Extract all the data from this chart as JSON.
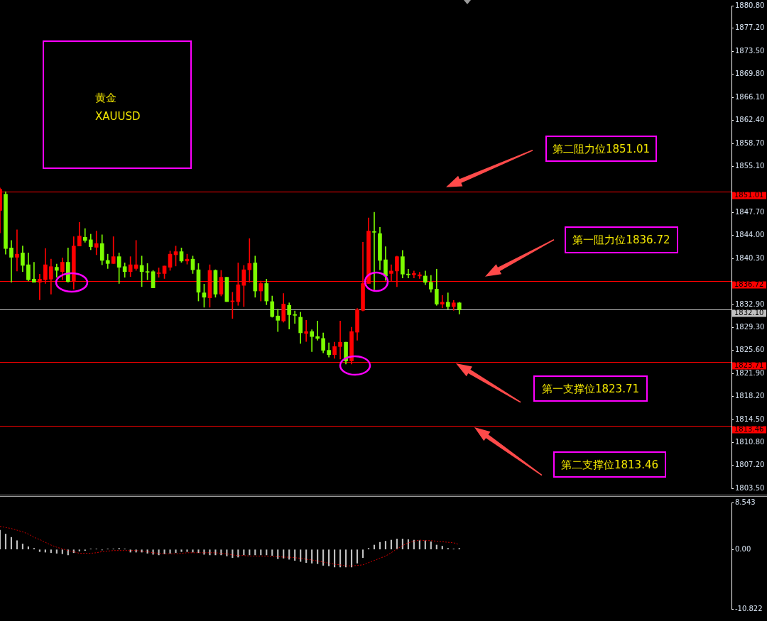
{
  "chart_data": [
    {
      "type": "candlestick",
      "categories": [
        null,
        null,
        null,
        null,
        null,
        null,
        null,
        null,
        null,
        null,
        null,
        null,
        null,
        null,
        null,
        null,
        null,
        null,
        null,
        null,
        null,
        null,
        null,
        null,
        null,
        null,
        null,
        null,
        null,
        null,
        null,
        null,
        null,
        null,
        null,
        null,
        null,
        null,
        null,
        null,
        null,
        null,
        null,
        null,
        null,
        null,
        null,
        null,
        null,
        null,
        null,
        null,
        null,
        null,
        null,
        null,
        null,
        null,
        null,
        null,
        null,
        null,
        null,
        null,
        null,
        null,
        null,
        null,
        null,
        null,
        null,
        null,
        null,
        null,
        null,
        null,
        null,
        null,
        null,
        null,
        null,
        null,
        null,
        null,
        null,
        null,
        null,
        null,
        null,
        null,
        null,
        null,
        null,
        null,
        null,
        null,
        null,
        null,
        null,
        null,
        null,
        null,
        null,
        null,
        null,
        null,
        null,
        null,
        null,
        null,
        null,
        null,
        null,
        null,
        null,
        null,
        null,
        null,
        null,
        null,
        null,
        null,
        null,
        null,
        null,
        null,
        null,
        null,
        null,
        null
      ],
      "ohlc": [
        [
          1848.0,
          1851.6,
          1844.4,
          1851.4
        ],
        [
          1850.6,
          1851.0,
          1841.0,
          1841.9
        ],
        [
          1842.0,
          1843.2,
          1836.5,
          1840.5
        ],
        [
          1840.5,
          1844.9,
          1838.3,
          1841.0
        ],
        [
          1841.2,
          1842.3,
          1838.2,
          1839.2
        ],
        [
          1839.3,
          1841.2,
          1836.7,
          1836.9
        ],
        [
          1837.0,
          1839.7,
          1836.5,
          1836.5
        ],
        [
          1836.5,
          1837.8,
          1833.7,
          1837.0
        ],
        [
          1836.9,
          1841.9,
          1836.3,
          1839.3
        ],
        [
          1837.0,
          1840.2,
          1834.6,
          1839.0
        ],
        [
          1838.9,
          1839.4,
          1837.3,
          1838.4
        ],
        [
          1838.2,
          1840.4,
          1836.9,
          1839.7
        ],
        [
          1839.7,
          1842.0,
          1836.5,
          1836.6
        ],
        [
          1836.6,
          1843.8,
          1835.4,
          1842.3
        ],
        [
          1842.3,
          1846.1,
          1842.3,
          1843.9
        ],
        [
          1843.7,
          1845.1,
          1842.9,
          1843.2
        ],
        [
          1843.3,
          1844.2,
          1841.7,
          1842.2
        ],
        [
          1842.1,
          1844.7,
          1840.9,
          1842.7
        ],
        [
          1842.7,
          1844.1,
          1839.3,
          1840.0
        ],
        [
          1840.0,
          1841.0,
          1838.7,
          1839.5
        ],
        [
          1839.5,
          1843.8,
          1839.5,
          1840.6
        ],
        [
          1840.6,
          1841.2,
          1836.3,
          1838.9
        ],
        [
          1839.0,
          1839.6,
          1837.3,
          1838.2
        ],
        [
          1838.2,
          1840.6,
          1837.4,
          1839.3
        ],
        [
          1838.7,
          1843.2,
          1838.4,
          1839.3
        ],
        [
          1839.2,
          1840.7,
          1835.8,
          1838.2
        ],
        [
          1838.2,
          1839.5,
          1836.9,
          1838.1
        ],
        [
          1838.2,
          1838.4,
          1835.6,
          1835.6
        ],
        [
          1837.9,
          1838.8,
          1837.3,
          1838.0
        ],
        [
          1837.9,
          1839.1,
          1837.1,
          1839.1
        ],
        [
          1838.9,
          1841.5,
          1838.4,
          1841.0
        ],
        [
          1840.9,
          1842.3,
          1839.1,
          1841.4
        ],
        [
          1841.4,
          1842.0,
          1839.7,
          1839.9
        ],
        [
          1839.9,
          1841.0,
          1839.4,
          1840.2
        ],
        [
          1840.2,
          1840.7,
          1837.9,
          1838.5
        ],
        [
          1838.5,
          1839.5,
          1833.5,
          1834.9
        ],
        [
          1834.8,
          1836.2,
          1832.5,
          1834.1
        ],
        [
          1834.0,
          1839.3,
          1832.5,
          1838.4
        ],
        [
          1838.4,
          1838.5,
          1834.1,
          1834.6
        ],
        [
          1834.6,
          1838.4,
          1834.3,
          1837.3
        ],
        [
          1837.3,
          1837.3,
          1833.4,
          1833.4
        ],
        [
          1833.4,
          1834.9,
          1830.7,
          1833.5
        ],
        [
          1833.4,
          1839.6,
          1832.8,
          1836.1
        ],
        [
          1836.0,
          1839.2,
          1832.6,
          1838.5
        ],
        [
          1838.5,
          1843.5,
          1836.5,
          1839.5
        ],
        [
          1839.6,
          1840.7,
          1834.1,
          1835.1
        ],
        [
          1835.1,
          1836.7,
          1833.5,
          1836.3
        ],
        [
          1836.3,
          1837.0,
          1832.9,
          1833.5
        ],
        [
          1833.4,
          1834.3,
          1830.9,
          1831.0
        ],
        [
          1831.1,
          1832.2,
          1828.6,
          1830.4
        ],
        [
          1830.3,
          1834.7,
          1830.1,
          1833.0
        ],
        [
          1832.8,
          1833.2,
          1829.0,
          1831.3
        ],
        [
          1831.3,
          1831.9,
          1829.9,
          1831.2
        ],
        [
          1830.9,
          1831.7,
          1826.7,
          1828.4
        ],
        [
          1828.3,
          1830.4,
          1827.0,
          1828.6
        ],
        [
          1828.6,
          1828.9,
          1825.4,
          1827.8
        ],
        [
          1827.8,
          1830.3,
          1827.2,
          1827.5
        ],
        [
          1827.5,
          1828.4,
          1825.2,
          1825.6
        ],
        [
          1825.6,
          1826.8,
          1824.5,
          1824.9
        ],
        [
          1824.9,
          1826.9,
          1824.3,
          1826.2
        ],
        [
          1826.2,
          1830.3,
          1824.2,
          1826.9
        ],
        [
          1826.9,
          1826.9,
          1823.4,
          1823.9
        ],
        [
          1823.9,
          1829.3,
          1823.4,
          1828.6
        ],
        [
          1828.5,
          1832.3,
          1827.2,
          1832.1
        ],
        [
          1832.0,
          1842.9,
          1831.9,
          1836.3
        ],
        [
          1836.3,
          1846.8,
          1836.3,
          1844.7
        ],
        [
          1844.6,
          1847.7,
          1835.3,
          1844.5
        ],
        [
          1844.3,
          1845.3,
          1838.5,
          1840.0
        ],
        [
          1840.1,
          1842.2,
          1836.8,
          1837.5
        ],
        [
          1837.9,
          1839.3,
          1836.7,
          1838.3
        ],
        [
          1838.3,
          1840.7,
          1835.8,
          1840.6
        ],
        [
          1840.6,
          1841.6,
          1837.2,
          1837.8
        ],
        [
          1837.8,
          1838.6,
          1837.2,
          1837.7
        ],
        [
          1837.7,
          1838.3,
          1837.2,
          1837.9
        ],
        [
          1837.5,
          1838.1,
          1837.1,
          1837.7
        ],
        [
          1837.5,
          1838.3,
          1836.1,
          1836.5
        ],
        [
          1836.5,
          1837.6,
          1834.9,
          1835.4
        ],
        [
          1835.4,
          1838.6,
          1832.8,
          1833.0
        ],
        [
          1833.0,
          1834.4,
          1832.4,
          1833.3
        ],
        [
          1833.3,
          1834.8,
          1832.2,
          1832.6
        ],
        [
          1832.6,
          1833.6,
          1832.0,
          1833.2
        ],
        [
          1833.2,
          1833.3,
          1831.4,
          1832.1
        ],
        null,
        null,
        null,
        null,
        null,
        null,
        null,
        null,
        null,
        null,
        null,
        null,
        null,
        null,
        null,
        null,
        null,
        null,
        null,
        null,
        null,
        null,
        null,
        null,
        null,
        null,
        null,
        null,
        null,
        null,
        null,
        null,
        null,
        null,
        null,
        null,
        null,
        null,
        null,
        null,
        null,
        null,
        null,
        null,
        null,
        null,
        null,
        null
      ],
      "colors": [
        "#ff0000",
        "#7cfc00",
        "#7cfc00",
        "#ff0000",
        "#7cfc00",
        "#7cfc00",
        "#7cfc00",
        "#ff0000",
        "#ff0000",
        "#ff0000",
        "#7cfc00",
        "#ff0000",
        "#7cfc00",
        "#ff0000",
        "#ff0000",
        "#7cfc00",
        "#7cfc00",
        "#ff0000",
        "#7cfc00",
        "#7cfc00",
        "#ff0000",
        "#7cfc00",
        "#7cfc00",
        "#ff0000",
        "#ff0000",
        "#7cfc00",
        "#7cfc00",
        "#7cfc00",
        "#ff0000",
        "#ff0000",
        "#ff0000",
        "#ff0000",
        "#7cfc00",
        "#ff0000",
        "#7cfc00",
        "#7cfc00",
        "#7cfc00",
        "#ff0000",
        "#7cfc00",
        "#ff0000",
        "#7cfc00",
        "#ff0000",
        "#ff0000",
        "#ff0000",
        "#ff0000",
        "#7cfc00",
        "#ff0000",
        "#7cfc00",
        "#7cfc00",
        "#7cfc00",
        "#ff0000",
        "#7cfc00",
        "#7cfc00",
        "#7cfc00",
        "#ff0000",
        "#7cfc00",
        "#7cfc00",
        "#7cfc00",
        "#7cfc00",
        "#ff0000",
        "#ff0000",
        "#7cfc00",
        "#ff0000",
        "#ff0000",
        "#ff0000",
        "#ff0000",
        "#7cfc00",
        "#7cfc00",
        "#7cfc00",
        "#ff0000",
        "#ff0000",
        "#7cfc00",
        "#7cfc00",
        "#ff0000",
        "#ff0000",
        "#7cfc00",
        "#7cfc00",
        "#7cfc00",
        "#ff0000",
        "#7cfc00",
        "#ff0000",
        "#7cfc00",
        null,
        null,
        null,
        null,
        null,
        null,
        null,
        null,
        null,
        null,
        null,
        null,
        null,
        null,
        null,
        null,
        null,
        null,
        null,
        null,
        null,
        null,
        null,
        null,
        null,
        null,
        null,
        null,
        null,
        null,
        null,
        null,
        null,
        null,
        null,
        null,
        null,
        null,
        null,
        null,
        null,
        null,
        null,
        null,
        null,
        null,
        null,
        null
      ],
      "ylim": [
        1803.5,
        1880.8
      ],
      "yticks": [
        {
          "value": 1803.5,
          "label": "1803.50"
        },
        {
          "value": 1807.2,
          "label": "1807.20"
        },
        {
          "value": 1810.8,
          "label": "1810.80"
        },
        {
          "value": 1814.5,
          "label": "1814.50"
        },
        {
          "value": 1818.2,
          "label": "1818.20"
        },
        {
          "value": 1821.9,
          "label": "1821.90"
        },
        {
          "value": 1825.6,
          "label": "1825.60"
        },
        {
          "value": 1829.3,
          "label": "1829.30"
        },
        {
          "value": 1832.9,
          "label": "1832.90"
        },
        {
          "value": 1840.3,
          "label": "1840.30"
        },
        {
          "value": 1844,
          "label": "1844.00"
        },
        {
          "value": 1847.7,
          "label": "1847.70"
        },
        {
          "value": 1855.1,
          "label": "1855.10"
        },
        {
          "value": 1858.7,
          "label": "1858.70"
        },
        {
          "value": 1862.4,
          "label": "1862.40"
        },
        {
          "value": 1866.1,
          "label": "1866.10"
        },
        {
          "value": 1869.8,
          "label": "1869.80"
        },
        {
          "value": 1873.5,
          "label": "1873.50"
        },
        {
          "value": 1877.2,
          "label": "1877.20"
        },
        {
          "value": 1880.8,
          "label": "1880.80"
        }
      ],
      "ref_lines": [
        {
          "axis": "y",
          "value": 1851.01,
          "label": "1851.01",
          "color": "#ff0000"
        },
        {
          "axis": "y",
          "value": 1836.72,
          "label": "1836.72",
          "color": "#ff0000"
        },
        {
          "axis": "y",
          "value": 1832.1,
          "label": "1832.10",
          "color": "#c0c0c0"
        },
        {
          "axis": "y",
          "value": 1823.71,
          "label": "1823.71",
          "color": "#ff0000"
        },
        {
          "axis": "y",
          "value": 1813.46,
          "label": "1813.46",
          "color": "#ff0000"
        }
      ],
      "annotations": [
        "黄金\nXAUUSD",
        "第二阻力位1851.01",
        "第一阻力位1836.72",
        {
          "text": "第一支撑位1823.71",
          "y": 1823.71
        },
        {
          "text": "第二支撑位1813.46",
          "y": 1813.46
        }
      ],
      "tick_labels": "y"
    },
    {
      "type": "bar",
      "categories": [
        null,
        null,
        null,
        null,
        null,
        null,
        null,
        null,
        null,
        null,
        null,
        null,
        null,
        null,
        null,
        null,
        null,
        null,
        null,
        null,
        null,
        null,
        null,
        null,
        null,
        null,
        null,
        null,
        null,
        null,
        null,
        null,
        null,
        null,
        null,
        null,
        null,
        null,
        null,
        null,
        null,
        null,
        null,
        null,
        null,
        null,
        null,
        null,
        null,
        null,
        null,
        null,
        null,
        null,
        null,
        null,
        null,
        null,
        null,
        null,
        null,
        null,
        null,
        null,
        null,
        null,
        null,
        null,
        null,
        null,
        null,
        null,
        null,
        null,
        null,
        null,
        null,
        null,
        null,
        null,
        null,
        null,
        null,
        null,
        null,
        null,
        null,
        null,
        null,
        null,
        null,
        null,
        null,
        null,
        null,
        null,
        null,
        null,
        null,
        null,
        null,
        null,
        null,
        null,
        null,
        null,
        null,
        null,
        null,
        null,
        null,
        null,
        null,
        null,
        null,
        null,
        null,
        null,
        null,
        null,
        null,
        null,
        null,
        null,
        null,
        null,
        null,
        null,
        null,
        null
      ],
      "series": [
        {
          "type": "bar",
          "color": "#c0c0c0",
          "values": [
            3.5,
            2.8,
            2.2,
            1.6,
            1.0,
            0.5,
            0.2,
            -0.4,
            -0.5,
            -0.6,
            -0.7,
            -0.8,
            -1.0,
            -0.6,
            -0.3,
            -0.2,
            0.1,
            0.1,
            -0.1,
            0.1,
            0.1,
            0.2,
            0.1,
            -0.5,
            -0.5,
            -0.5,
            -0.7,
            -0.9,
            -1.0,
            -0.8,
            -0.7,
            -0.6,
            -0.4,
            -0.4,
            -0.5,
            -0.6,
            -0.9,
            -1.0,
            -1.0,
            -1.0,
            -1.2,
            -1.5,
            -1.4,
            -1.0,
            -1.0,
            -1.0,
            -1.0,
            -1.0,
            -1.1,
            -1.7,
            -1.6,
            -1.8,
            -2.0,
            -2.2,
            -2.4,
            -2.5,
            -2.6,
            -2.9,
            -3.0,
            -3.2,
            -3.2,
            -3.2,
            -3.2,
            -2.5,
            -1.5,
            0.2,
            0.8,
            1.3,
            1.5,
            1.7,
            1.9,
            1.9,
            1.8,
            1.7,
            1.6,
            1.6,
            1.4,
            0.8,
            0.6,
            0.2,
            0.1,
            0.2,
            null,
            null,
            null,
            null,
            null,
            null,
            null,
            null,
            null,
            null,
            null,
            null,
            null,
            null,
            null,
            null,
            null,
            null,
            null,
            null,
            null,
            null,
            null,
            null,
            null,
            null,
            null,
            null,
            null,
            null,
            null,
            null,
            null,
            null,
            null,
            null,
            null,
            null,
            null,
            null,
            null,
            null,
            null,
            null,
            null,
            null,
            null,
            null
          ]
        },
        {
          "type": "line",
          "color": "#cc0000",
          "values": [
            4.2,
            4.0,
            3.8,
            3.5,
            3.2,
            2.8,
            2.2,
            1.8,
            1.3,
            0.8,
            0.4,
            0.1,
            -0.2,
            -0.4,
            -0.7,
            -0.7,
            -0.7,
            -0.6,
            -0.4,
            -0.3,
            -0.2,
            -0.2,
            -0.2,
            -0.2,
            -0.2,
            -0.3,
            -0.4,
            -0.6,
            -0.7,
            -0.8,
            -0.8,
            -0.8,
            -0.7,
            -0.6,
            -0.6,
            -0.6,
            -0.6,
            -0.6,
            -0.6,
            -0.7,
            -0.8,
            -1.0,
            -1.1,
            -1.1,
            -1.2,
            -1.2,
            -1.2,
            -1.2,
            -1.3,
            -1.3,
            -1.4,
            -1.4,
            -1.5,
            -1.6,
            -1.8,
            -1.9,
            -2.1,
            -2.3,
            -2.5,
            -2.7,
            -2.8,
            -3.0,
            -3.0,
            -2.9,
            -2.8,
            -2.4,
            -2.0,
            -1.6,
            -1.2,
            -0.6,
            0.1,
            0.7,
            1.2,
            1.5,
            1.7,
            1.6,
            1.6,
            1.5,
            1.4,
            1.3,
            1.2,
            0.9,
            null,
            null,
            null,
            null,
            null,
            null,
            null,
            null,
            null,
            null,
            null,
            null,
            null,
            null,
            null,
            null,
            null,
            null,
            null,
            null,
            null,
            null,
            null,
            null,
            null,
            null,
            null,
            null,
            null,
            null,
            null,
            null,
            null,
            null,
            null,
            null,
            null,
            null,
            null,
            null,
            null,
            null,
            null,
            null,
            null,
            null,
            null,
            null
          ]
        }
      ],
      "ylim": [
        -10.822,
        8.543
      ],
      "yticks": [
        {
          "value": -10.822,
          "label": "-10.822"
        },
        {
          "value": 0,
          "label": "0.00"
        },
        {
          "value": 8.543,
          "label": "8.543"
        }
      ],
      "line_style": "dotted",
      "marker": "none",
      "tick_labels": "y"
    }
  ]
}
